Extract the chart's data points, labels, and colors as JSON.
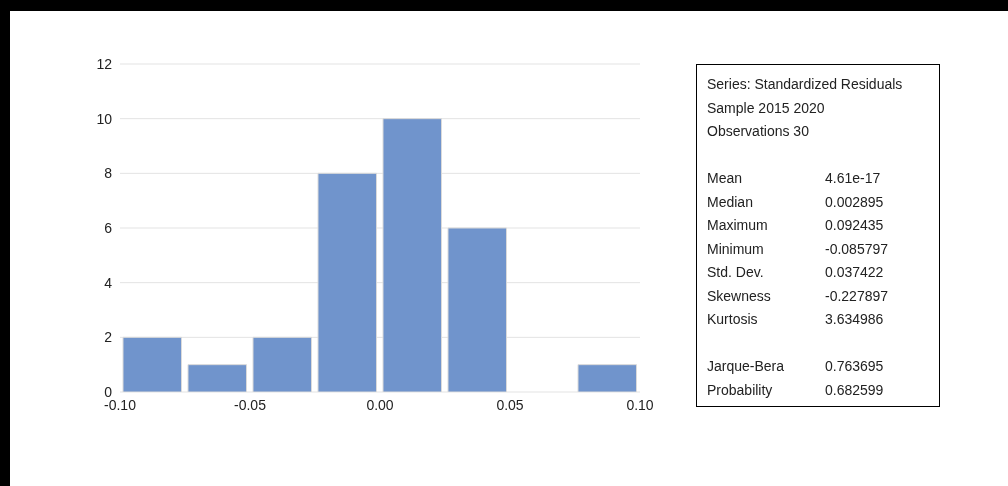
{
  "chart_data": [
    {
      "type": "histogram",
      "bins": [
        -0.1,
        -0.075,
        -0.05,
        -0.025,
        0,
        0.025,
        0.05,
        0.075,
        0.1
      ],
      "values": [
        2,
        1,
        2,
        8,
        10,
        6,
        0,
        1
      ],
      "color": "#7094cc",
      "xlim": [
        -0.1,
        0.1
      ],
      "xticks": [
        {
          "value": -0.1,
          "label": "-0.10"
        },
        {
          "value": -0.05,
          "label": "-0.05"
        },
        {
          "value": 0,
          "label": "0.00"
        },
        {
          "value": 0.05,
          "label": "0.05"
        },
        {
          "value": 0.1,
          "label": "0.10"
        }
      ],
      "ylim": [
        0,
        12
      ],
      "yticks": [
        0,
        2,
        4,
        6,
        8,
        10,
        12
      ],
      "grid": "y"
    },
    {
      "type": "other",
      "annotations": [
        "Series: Standardized Residuals",
        "Sample 2015 2020",
        "Observations 30"
      ],
      "categories": [
        "Mean",
        "Median",
        "Maximum",
        "Minimum",
        "Std. Dev.",
        "Skewness",
        "Kurtosis",
        null,
        "Jarque-Bera",
        "Probability"
      ],
      "value_labels": [
        "4.61e-17",
        "0.002895",
        "0.092435",
        "-0.085797",
        "0.037422",
        "-0.227897",
        "3.634986",
        null,
        "0.763695",
        "0.682599"
      ]
    }
  ]
}
